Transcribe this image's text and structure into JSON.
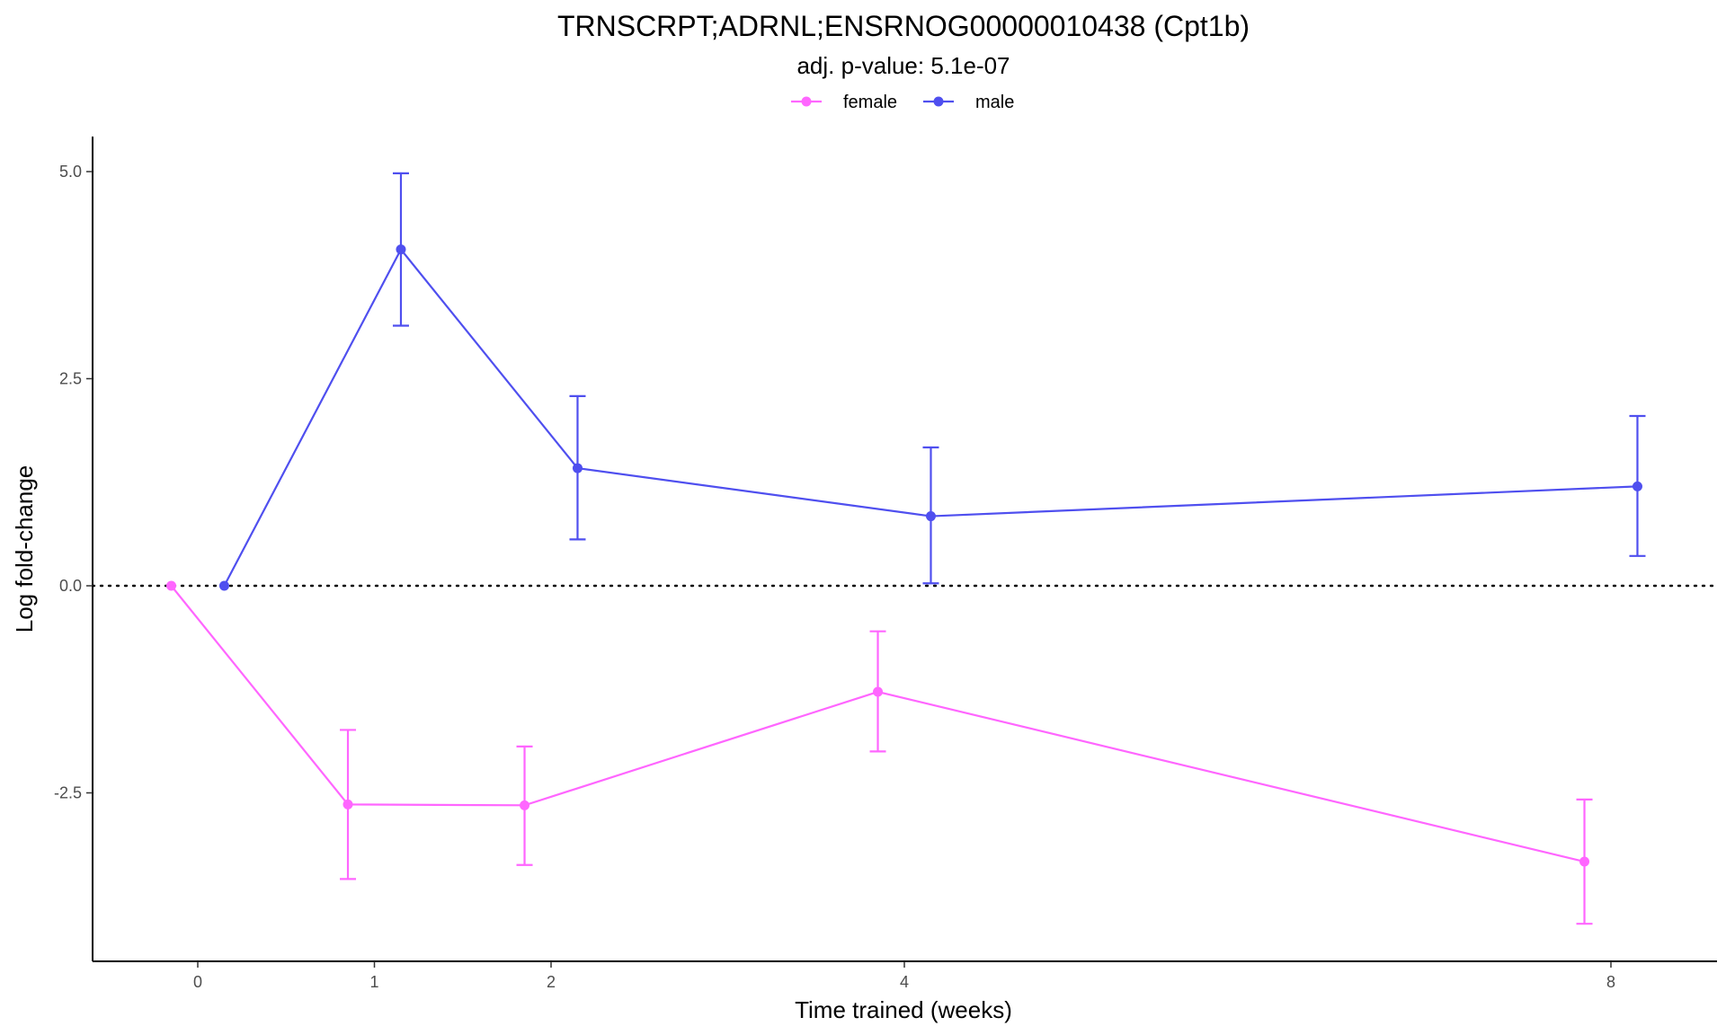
{
  "chart_data": {
    "type": "line",
    "title": "TRNSCRPT;ADRNL;ENSRNOG00000010438 (Cpt1b)",
    "subtitle": "adj. p-value: 5.1e-07",
    "xlabel": "Time trained (weeks)",
    "ylabel": "Log fold-change",
    "x_ticks": [
      "0",
      "1",
      "2",
      "4",
      "8"
    ],
    "y_ticks": [
      "5.0",
      "2.5",
      "0.0",
      "-2.5"
    ],
    "ylim": [
      -4.5,
      5.4
    ],
    "xlim": [
      -0.6,
      8.6
    ],
    "legend_position": "top",
    "reference_line": 0,
    "series": [
      {
        "name": "female",
        "color": "#ff66ff",
        "points": [
          {
            "x": 0,
            "y": 0.0,
            "lo": 0.0,
            "hi": 0.0
          },
          {
            "x": 1,
            "y": -2.64,
            "lo": -3.54,
            "hi": -1.74
          },
          {
            "x": 2,
            "y": -2.65,
            "lo": -3.37,
            "hi": -1.94
          },
          {
            "x": 4,
            "y": -1.28,
            "lo": -2.0,
            "hi": -0.55
          },
          {
            "x": 8,
            "y": -3.33,
            "lo": -4.08,
            "hi": -2.58
          }
        ]
      },
      {
        "name": "male",
        "color": "#4f4fef",
        "points": [
          {
            "x": 0,
            "y": 0.0,
            "lo": 0.0,
            "hi": 0.0
          },
          {
            "x": 1,
            "y": 4.06,
            "lo": 3.14,
            "hi": 4.98
          },
          {
            "x": 2,
            "y": 1.42,
            "lo": 0.56,
            "hi": 2.29
          },
          {
            "x": 4,
            "y": 0.84,
            "lo": 0.03,
            "hi": 1.67
          },
          {
            "x": 8,
            "y": 1.2,
            "lo": 0.36,
            "hi": 2.05
          }
        ]
      }
    ]
  }
}
